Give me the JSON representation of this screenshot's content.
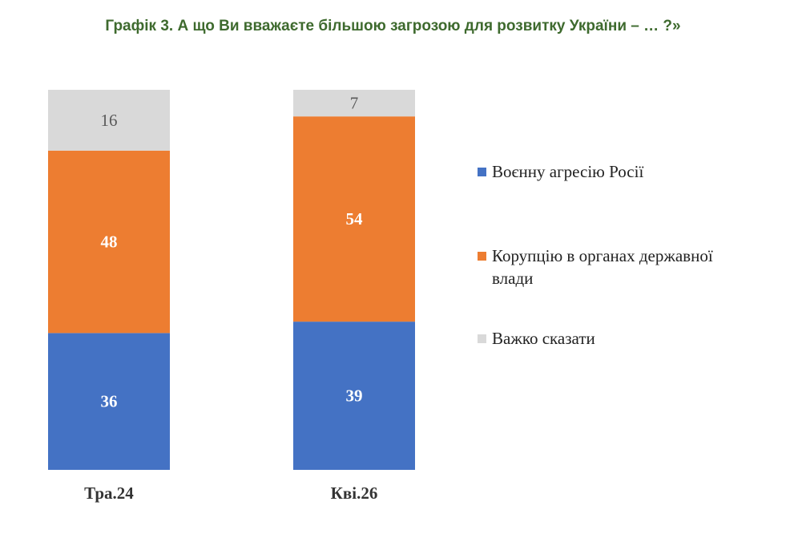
{
  "title": "Графік 3. А що Ви вважаєте більшою загрозою для розвитку України – … ?»",
  "colors": {
    "title": "#3e6a2e",
    "russia": "#4472c4",
    "corruption": "#ed7d31",
    "hard_to_say": "#d9d9d9",
    "label_light": "#ffffff",
    "label_dark": "#595959"
  },
  "chart_data": {
    "type": "bar",
    "stacked": true,
    "orientation": "vertical",
    "title": "Графік 3. А що Ви вважаєте більшою загрозою для розвитку України – … ?»",
    "categories": [
      "Тра.24",
      "Кві.26"
    ],
    "series": [
      {
        "name": "Воєнну агресію Росії",
        "values": [
          36,
          39
        ],
        "color": "#4472c4"
      },
      {
        "name": "Корупцію в органах державної влади",
        "values": [
          48,
          54
        ],
        "color": "#ed7d31"
      },
      {
        "name": "Важко сказати",
        "values": [
          16,
          7
        ],
        "color": "#d9d9d9"
      }
    ],
    "ylim": [
      0,
      100
    ],
    "grid": false,
    "legend_position": "right",
    "data_labels": true
  }
}
